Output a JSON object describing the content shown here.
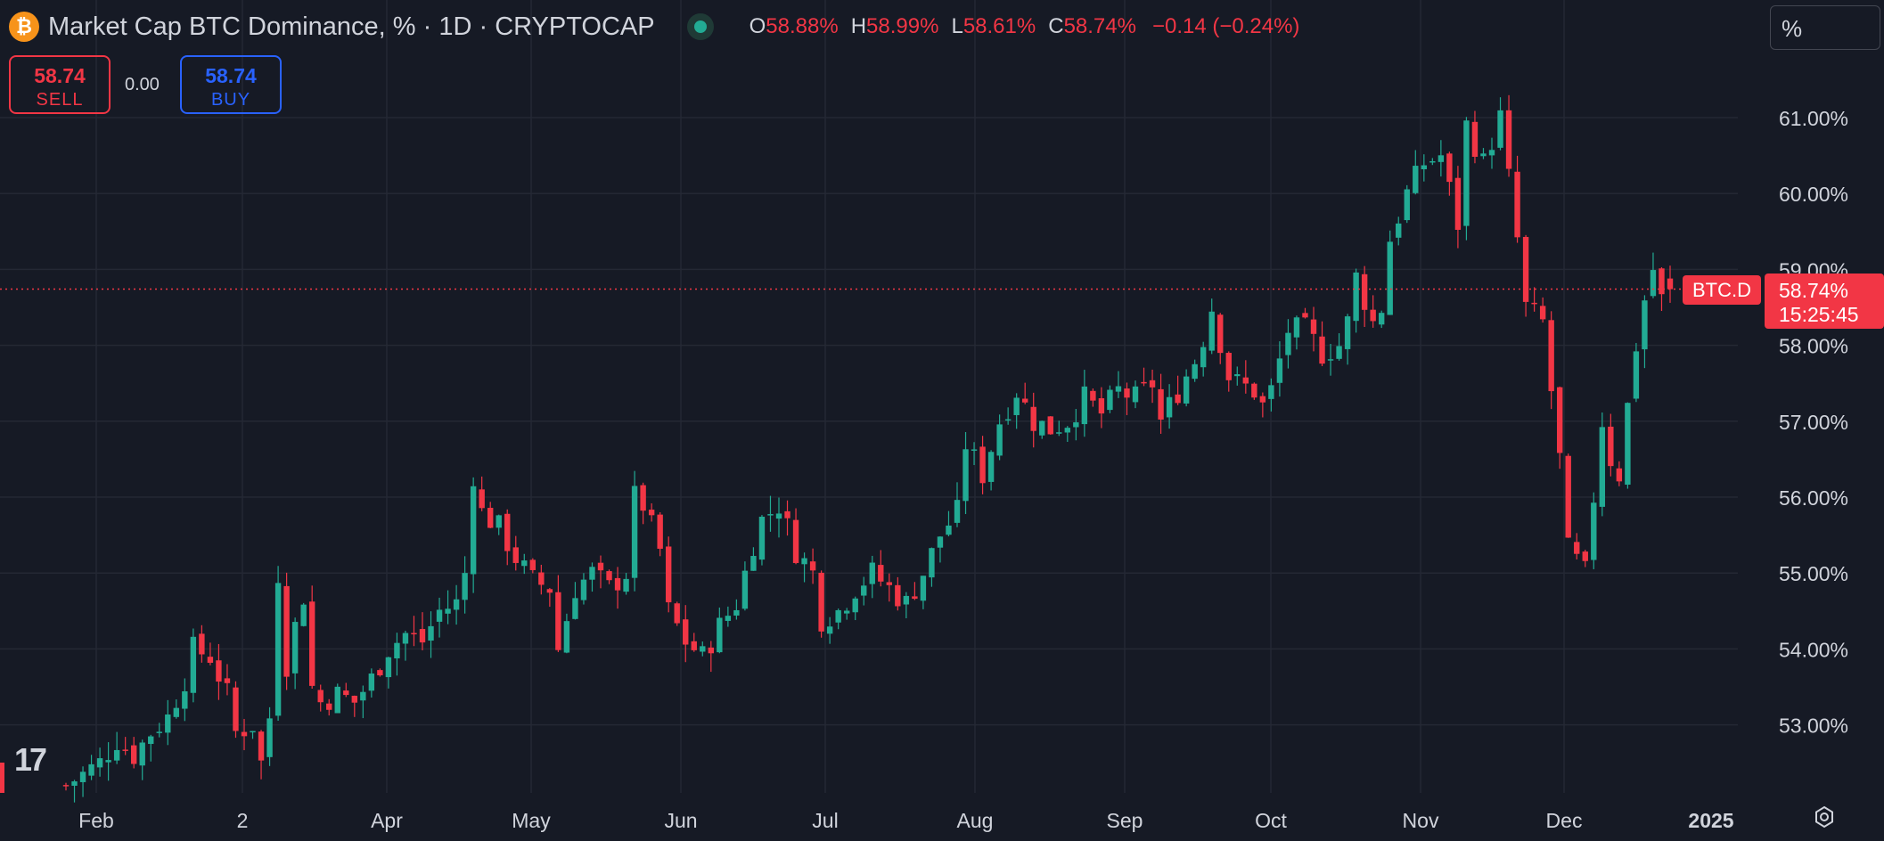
{
  "header": {
    "title": "Market Cap BTC Dominance, % · 1D · CRYPTOCAP",
    "ohlc": [
      {
        "k": "O",
        "v": "58.88%"
      },
      {
        "k": "H",
        "v": "58.99%"
      },
      {
        "k": "L",
        "v": "58.61%"
      },
      {
        "k": "C",
        "v": "58.74%"
      }
    ],
    "change": "−0.14 (−0.24%)",
    "scale_mode": "%"
  },
  "trade": {
    "sell_price": "58.74",
    "sell_label": "SELL",
    "spread": "0.00",
    "buy_price": "58.74",
    "buy_label": "BUY"
  },
  "price_tag": {
    "symbol": "BTC.D",
    "price": "58.74%",
    "countdown": "15:25:45"
  },
  "colors": {
    "up": "#22ab94",
    "down": "#f23645",
    "background": "#161a25",
    "grid": "#242834",
    "text": "#d1d4dc"
  },
  "icons": {
    "logo": "tradingview-logo",
    "settings": "gear-icon",
    "symbol": "bitcoin-icon"
  },
  "chart_data": {
    "type": "candlestick",
    "y_unit": "%",
    "ylim": [
      52.4,
      61.9
    ],
    "y_ticks": [
      "61.00%",
      "60.00%",
      "59.00%",
      "58.00%",
      "57.00%",
      "56.00%",
      "55.00%",
      "54.00%",
      "53.00%"
    ],
    "x_ticks": [
      "Feb",
      "2",
      "Apr",
      "May",
      "Jun",
      "Jul",
      "Aug",
      "Sep",
      "Oct",
      "Nov",
      "Dec",
      "2025"
    ],
    "grid": true,
    "last_price": 58.74,
    "close_path": [
      [
        0,
        52.2
      ],
      [
        4,
        52.5
      ],
      [
        6,
        52.8
      ],
      [
        8,
        52.6
      ],
      [
        10,
        52.9
      ],
      [
        12,
        53.1
      ],
      [
        14,
        53.6
      ],
      [
        15,
        54.0
      ],
      [
        17,
        53.9
      ],
      [
        19,
        53.4
      ],
      [
        20,
        52.9
      ],
      [
        22,
        53.0
      ],
      [
        23,
        52.5
      ],
      [
        24,
        53.1
      ],
      [
        25,
        55.0
      ],
      [
        26,
        53.8
      ],
      [
        27,
        54.3
      ],
      [
        28,
        54.7
      ],
      [
        29,
        53.5
      ],
      [
        30,
        53.3
      ],
      [
        32,
        53.4
      ],
      [
        34,
        53.3
      ],
      [
        36,
        53.6
      ],
      [
        38,
        54.0
      ],
      [
        40,
        54.2
      ],
      [
        42,
        54.1
      ],
      [
        44,
        54.5
      ],
      [
        46,
        54.6
      ],
      [
        47,
        55.0
      ],
      [
        48,
        56.3
      ],
      [
        49,
        55.8
      ],
      [
        51,
        55.6
      ],
      [
        53,
        55.2
      ],
      [
        55,
        54.9
      ],
      [
        57,
        54.8
      ],
      [
        58,
        54.0
      ],
      [
        60,
        54.8
      ],
      [
        62,
        55.0
      ],
      [
        64,
        54.8
      ],
      [
        66,
        55.0
      ],
      [
        67,
        56.0
      ],
      [
        68,
        55.9
      ],
      [
        70,
        55.3
      ],
      [
        71,
        54.5
      ],
      [
        73,
        54.1
      ],
      [
        75,
        53.9
      ],
      [
        77,
        54.3
      ],
      [
        79,
        54.6
      ],
      [
        80,
        55.0
      ],
      [
        81,
        55.4
      ],
      [
        82,
        55.7
      ],
      [
        84,
        55.9
      ],
      [
        86,
        55.3
      ],
      [
        88,
        55.0
      ],
      [
        89,
        54.4
      ],
      [
        91,
        54.5
      ],
      [
        93,
        54.8
      ],
      [
        95,
        55.0
      ],
      [
        97,
        54.8
      ],
      [
        99,
        54.6
      ],
      [
        101,
        55.0
      ],
      [
        103,
        55.5
      ],
      [
        105,
        55.8
      ],
      [
        106,
        56.7
      ],
      [
        108,
        56.3
      ],
      [
        110,
        57.0
      ],
      [
        112,
        57.4
      ],
      [
        114,
        57.0
      ],
      [
        116,
        56.9
      ],
      [
        118,
        57.0
      ],
      [
        120,
        57.3
      ],
      [
        122,
        57.1
      ],
      [
        124,
        57.4
      ],
      [
        126,
        57.3
      ],
      [
        128,
        57.5
      ],
      [
        129,
        57.0
      ],
      [
        131,
        57.4
      ],
      [
        133,
        57.8
      ],
      [
        134,
        58.1
      ],
      [
        135,
        58.5
      ],
      [
        137,
        57.6
      ],
      [
        138,
        57.5
      ],
      [
        140,
        57.4
      ],
      [
        141,
        57.2
      ],
      [
        142,
        57.4
      ],
      [
        144,
        58.2
      ],
      [
        146,
        58.2
      ],
      [
        148,
        57.9
      ],
      [
        150,
        58.0
      ],
      [
        151,
        58.3
      ],
      [
        152,
        58.9
      ],
      [
        154,
        58.3
      ],
      [
        155,
        58.5
      ],
      [
        156,
        59.4
      ],
      [
        158,
        60.0
      ],
      [
        160,
        60.4
      ],
      [
        162,
        60.5
      ],
      [
        164,
        59.6
      ],
      [
        165,
        60.9
      ],
      [
        167,
        60.4
      ],
      [
        169,
        61.0
      ],
      [
        170,
        60.2
      ],
      [
        171,
        59.4
      ],
      [
        172,
        58.5
      ],
      [
        174,
        58.3
      ],
      [
        176,
        56.5
      ],
      [
        177,
        55.3
      ],
      [
        179,
        55.0
      ],
      [
        180,
        56.0
      ],
      [
        181,
        57.0
      ],
      [
        182,
        56.5
      ],
      [
        183,
        56.3
      ],
      [
        184,
        57.2
      ],
      [
        185,
        58.0
      ],
      [
        186,
        58.6
      ],
      [
        187,
        59.0
      ],
      [
        188,
        58.6
      ],
      [
        189,
        58.74
      ]
    ],
    "candle_count": 190
  }
}
